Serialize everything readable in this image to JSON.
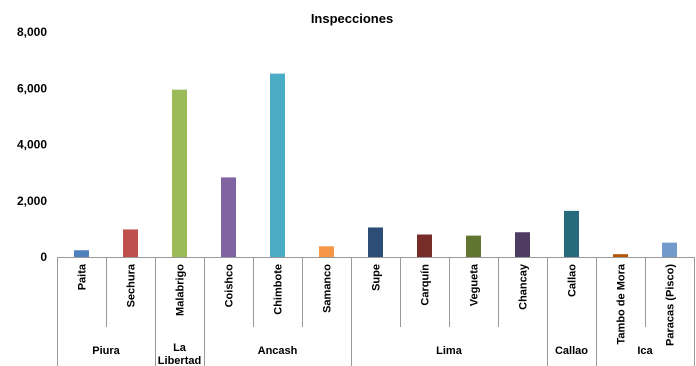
{
  "chart_data": {
    "type": "bar",
    "title": "Inspecciones",
    "xlabel": "",
    "ylabel": "",
    "ylim": [
      0,
      8000
    ],
    "yticks": [
      "0",
      "2,000",
      "4,000",
      "6,000",
      "8,000"
    ],
    "ytick_values": [
      0,
      2000,
      4000,
      6000,
      8000
    ],
    "grid": false,
    "legend": "none",
    "categories": [
      "Paita",
      "Sechura",
      "Malabrigo",
      "Coishco",
      "Chimbote",
      "Samanco",
      "Supe",
      "Carquín",
      "Vegueta",
      "Chancay",
      "Callao",
      "Tambo de Mora",
      "Paracas (Pisco)"
    ],
    "values": [
      240,
      980,
      5950,
      2830,
      6520,
      380,
      1050,
      800,
      760,
      880,
      1640,
      100,
      510
    ],
    "colors": [
      "#4f81bd",
      "#c0504d",
      "#9bbb59",
      "#8064a2",
      "#4bacc6",
      "#f79646",
      "#2c4d75",
      "#772c2a",
      "#5f7530",
      "#4d3b62",
      "#276a7c",
      "#b65708",
      "#729aca"
    ],
    "groups": [
      {
        "label": "Piura",
        "categories": [
          "Paita",
          "Sechura"
        ]
      },
      {
        "label": "La Libertad",
        "categories": [
          "Malabrigo"
        ]
      },
      {
        "label": "Ancash",
        "categories": [
          "Coishco",
          "Chimbote",
          "Samanco"
        ]
      },
      {
        "label": "Lima",
        "categories": [
          "Supe",
          "Carquín",
          "Vegueta",
          "Chancay"
        ]
      },
      {
        "label": "Callao",
        "categories": [
          "Callao"
        ]
      },
      {
        "label": "Ica",
        "categories": [
          "Tambo de Mora",
          "Paracas (Pisco)"
        ]
      }
    ]
  }
}
